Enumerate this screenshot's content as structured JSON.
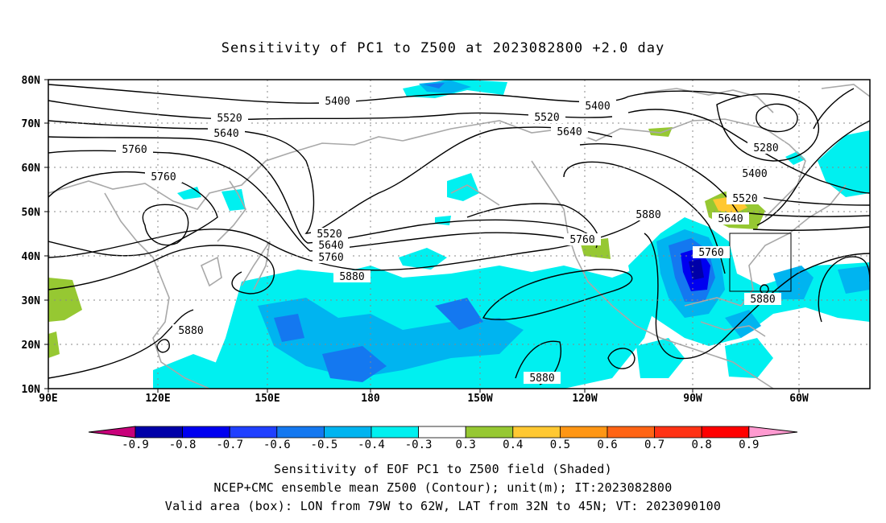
{
  "title": "Sensitivity of PC1 to Z500 at 2023082800 +2.0 day",
  "lat_labels": [
    "80N",
    "70N",
    "60N",
    "50N",
    "40N",
    "30N",
    "20N",
    "10N"
  ],
  "lon_labels": [
    "90E",
    "120E",
    "150E",
    "180",
    "150W",
    "120W",
    "90W",
    "60W"
  ],
  "contour_labels": [
    {
      "text": "5400"
    },
    {
      "text": "5400"
    },
    {
      "text": "5520"
    },
    {
      "text": "5520"
    },
    {
      "text": "5640"
    },
    {
      "text": "5640"
    },
    {
      "text": "5760"
    },
    {
      "text": "5760"
    },
    {
      "text": "5280"
    },
    {
      "text": "5400"
    },
    {
      "text": "5520"
    },
    {
      "text": "5640"
    },
    {
      "text": "5880"
    },
    {
      "text": "5520"
    },
    {
      "text": "5640"
    },
    {
      "text": "5760"
    },
    {
      "text": "5760"
    },
    {
      "text": "5760"
    },
    {
      "text": "5880"
    },
    {
      "text": "5880"
    },
    {
      "text": "5880"
    },
    {
      "text": "5880"
    }
  ],
  "colorbar": {
    "labels": [
      "-0.9",
      "-0.8",
      "-0.7",
      "-0.6",
      "-0.5",
      "-0.4",
      "-0.3",
      "0.3",
      "0.4",
      "0.5",
      "0.6",
      "0.7",
      "0.8",
      "0.9"
    ],
    "colors": [
      "#0000a8",
      "#0000f0",
      "#2040ff",
      "#1478f0",
      "#00b4f0",
      "#00f0f0",
      "#ffffff",
      "#96c832",
      "#ffc832",
      "#ff9614",
      "#ff6414",
      "#ff3214",
      "#ff0000"
    ],
    "left_tip_color": "#c8007a",
    "right_tip_color": "#ff9ad0"
  },
  "footer": {
    "line1": "Sensitivity of EOF PC1 to Z500 field (Shaded)",
    "line2": "NCEP+CMC ensemble mean Z500 (Contour); unit(m); IT:2023082800",
    "line3": "Valid area (box): LON from 79W to 62W, LAT from 32N to 45N; VT: 2023090100"
  }
}
